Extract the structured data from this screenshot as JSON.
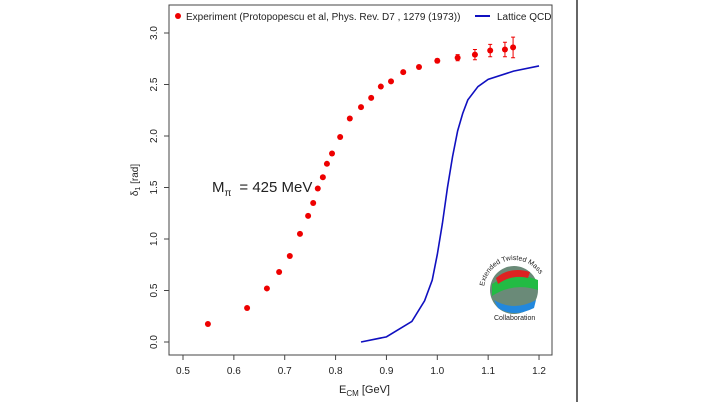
{
  "chart_data": {
    "type": "scatter",
    "xlabel_main": "E",
    "xlabel_sub": "CM",
    "xlabel_unit": " [GeV]",
    "ylabel_main": "δ",
    "ylabel_sub": "1",
    "ylabel_unit": " [rad]",
    "xlim": [
      0.47,
      1.23
    ],
    "ylim": [
      -0.12,
      3.25
    ],
    "xticks": [
      "0.5",
      "0.6",
      "0.7",
      "0.8",
      "0.9",
      "1.0",
      "1.1",
      "1.2"
    ],
    "yticks": [
      "0.0",
      "0.5",
      "1.0",
      "1.5",
      "2.0",
      "2.5",
      "3.0"
    ],
    "annotation": {
      "main": "M",
      "sub": "π",
      "rest": "= 425 MeV"
    },
    "legend": {
      "experiment": "Experiment (Protopopescu et al, Phys. Rev. D7 , 1279 (1973))",
      "lattice": "Lattice QCD"
    },
    "logo_text": "Extended Twisted Mass Collaboration",
    "colors": {
      "experiment": "#ee0000",
      "lattice": "#1010c0"
    },
    "series": [
      {
        "name": "Experiment",
        "type": "scatter",
        "x": [
          0.549,
          0.626,
          0.665,
          0.689,
          0.71,
          0.73,
          0.746,
          0.756,
          0.765,
          0.775,
          0.783,
          0.793,
          0.809,
          0.828,
          0.85,
          0.87,
          0.889,
          0.909,
          0.933,
          0.964,
          1.0,
          1.04,
          1.074,
          1.104,
          1.133,
          1.149
        ],
        "y": [
          0.175,
          0.33,
          0.52,
          0.68,
          0.835,
          1.05,
          1.225,
          1.35,
          1.49,
          1.6,
          1.73,
          1.83,
          1.99,
          2.17,
          2.28,
          2.37,
          2.48,
          2.53,
          2.62,
          2.67,
          2.73,
          2.76,
          2.79,
          2.83,
          2.84,
          2.86
        ],
        "err": [
          0,
          0,
          0,
          0,
          0,
          0,
          0,
          0,
          0,
          0,
          0,
          0,
          0,
          0,
          0,
          0,
          0,
          0,
          0,
          0,
          0.02,
          0.03,
          0.05,
          0.06,
          0.07,
          0.1
        ]
      },
      {
        "name": "Lattice QCD",
        "type": "line",
        "x": [
          0.85,
          0.9,
          0.95,
          0.975,
          0.99,
          1.0,
          1.01,
          1.02,
          1.03,
          1.04,
          1.05,
          1.06,
          1.08,
          1.1,
          1.15,
          1.2
        ],
        "y": [
          0.0,
          0.05,
          0.2,
          0.4,
          0.6,
          0.85,
          1.15,
          1.5,
          1.8,
          2.05,
          2.22,
          2.35,
          2.48,
          2.55,
          2.63,
          2.68
        ]
      }
    ]
  }
}
